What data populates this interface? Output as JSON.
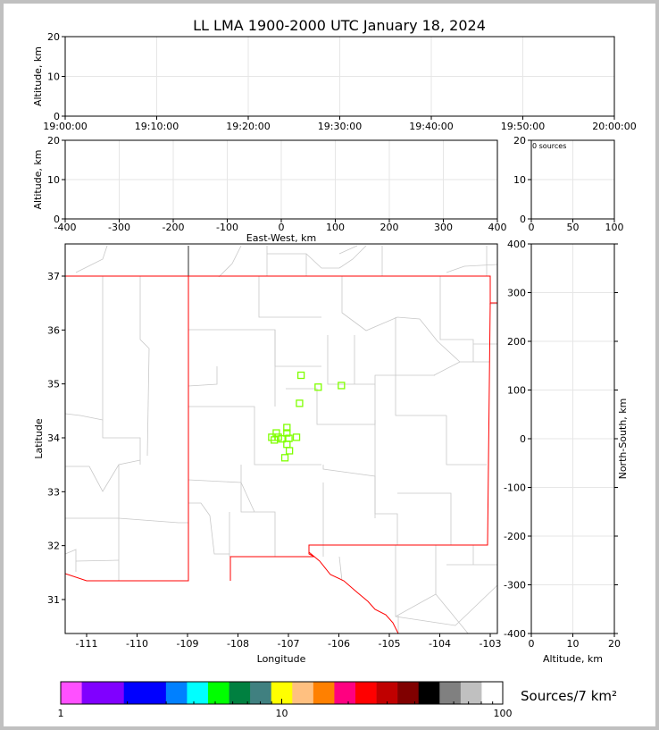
{
  "title": "LL LMA 1900-2000 UTC January 18, 2024",
  "colors": {
    "points": "#7fff00",
    "state_border": "#ff0000",
    "county": "#c8c8c8"
  },
  "chart_data": [
    {
      "name": "altitude-vs-time",
      "type": "scatter",
      "ylabel": "Altitude, km",
      "ylim": [
        0,
        20
      ],
      "yticks": [
        "0",
        "10",
        "20"
      ],
      "xlim": [
        "19:00:00",
        "20:00:00"
      ],
      "xticks": [
        "19:00:00",
        "19:10:00",
        "19:20:00",
        "19:30:00",
        "19:40:00",
        "19:50:00",
        "20:00:00"
      ],
      "grid": true,
      "points": []
    },
    {
      "name": "altitude-vs-east-west",
      "type": "scatter",
      "xlabel": "East-West, km",
      "ylabel": "Altitude, km",
      "xlim": [
        -400,
        400
      ],
      "ylim": [
        0,
        20
      ],
      "xticks": [
        "-400",
        "-300",
        "-200",
        "-100",
        "0",
        "100",
        "200",
        "300",
        "400"
      ],
      "yticks": [
        "0",
        "10",
        "20"
      ],
      "grid": true,
      "points": []
    },
    {
      "name": "source-histogram",
      "type": "bar",
      "annotation": "0 sources",
      "xlim": [
        0,
        100
      ],
      "ylim": [
        0,
        20
      ],
      "xticks": [
        "0",
        "50",
        "100"
      ],
      "yticks": [
        "0",
        "10",
        "20"
      ],
      "values": []
    },
    {
      "name": "plan-view",
      "type": "scatter",
      "xlabel": "Longitude",
      "ylabel": "Latitude",
      "xlim": [
        -111.43,
        -102.85
      ],
      "ylim": [
        30.4,
        37.6
      ],
      "xticks": [
        "-111",
        "-110",
        "-109",
        "-108",
        "-107",
        "-106",
        "-105",
        "-104",
        "-103"
      ],
      "yticks": [
        "31",
        "32",
        "33",
        "34",
        "35",
        "36",
        "37"
      ],
      "grid": false,
      "points": [
        {
          "lon": -106.75,
          "lat": 35.16
        },
        {
          "lon": -106.41,
          "lat": 34.94
        },
        {
          "lon": -105.95,
          "lat": 34.97
        },
        {
          "lon": -106.78,
          "lat": 34.64
        },
        {
          "lon": -107.03,
          "lat": 34.19
        },
        {
          "lon": -107.03,
          "lat": 34.09
        },
        {
          "lon": -107.24,
          "lat": 34.09
        },
        {
          "lon": -106.84,
          "lat": 34.01
        },
        {
          "lon": -107.33,
          "lat": 34.01
        },
        {
          "lon": -107.2,
          "lat": 34.01
        },
        {
          "lon": -107.13,
          "lat": 33.98
        },
        {
          "lon": -106.99,
          "lat": 33.99
        },
        {
          "lon": -107.28,
          "lat": 33.96
        },
        {
          "lon": -107.03,
          "lat": 33.88
        },
        {
          "lon": -106.98,
          "lat": 33.76
        },
        {
          "lon": -107.07,
          "lat": 33.63
        }
      ]
    },
    {
      "name": "north-south-vs-altitude",
      "type": "scatter",
      "xlabel": "Altitude, km",
      "ylabel": "North-South, km",
      "xlim": [
        0,
        20
      ],
      "ylim": [
        -400,
        400
      ],
      "xticks": [
        "0",
        "10",
        "20"
      ],
      "yticks": [
        "-400",
        "-300",
        "-200",
        "-100",
        "0",
        "100",
        "200",
        "300",
        "400"
      ],
      "grid": true,
      "points": []
    },
    {
      "name": "colorbar",
      "type": "colorbar",
      "label": "Sources/7 km²",
      "scale": "log",
      "range": [
        1,
        100
      ],
      "ticks": [
        "1",
        "10",
        "100"
      ],
      "colors": [
        "#ff50ff",
        "#8000ff",
        "#0000ff",
        "#0080ff",
        "#00ffff",
        "#00ff00",
        "#008040",
        "#408080",
        "#ffff00",
        "#ffc080",
        "#ff8000",
        "#ff0080",
        "#ff0000",
        "#c00000",
        "#800000",
        "#000000",
        "#808080",
        "#c0c0c0",
        "#ffffff"
      ]
    }
  ]
}
